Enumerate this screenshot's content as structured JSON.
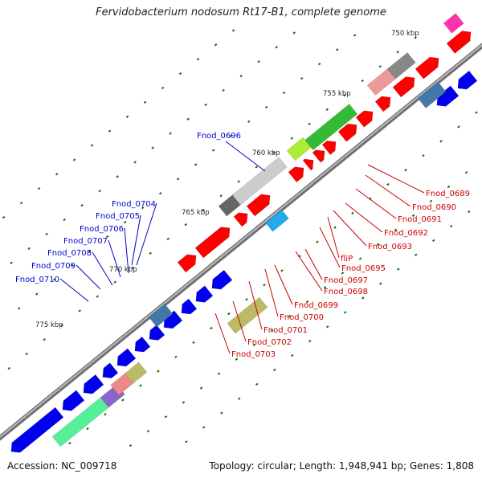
{
  "title": "Fervidobacterium nodosum Rt17-B1, complete genome",
  "footer": {
    "accession": "Accession: NC_009718",
    "summary": "Topology: circular; Length: 1,948,941 bp; Genes: 1,808"
  },
  "colors": {
    "backbone": "#8a8a8a",
    "forward_genes": "#ff0000",
    "reverse_genes": "#0000ee",
    "label_forward": "#cc0000",
    "label_reverse": "#0000cc",
    "tick": "#007700"
  },
  "kbp_ticks": [
    "750 kbp",
    "755 kbp",
    "760 kbp",
    "765 kbp",
    "770 kbp",
    "775 kbp"
  ],
  "labels_forward": [
    "Fnod_0689",
    "Fnod_0690",
    "Fnod_0691",
    "Fnod_0692",
    "Fnod_0693",
    "fliP",
    "Fnod_0695",
    "Fnod_0697",
    "Fnod_0698",
    "Fnod_0699",
    "Fnod_0700",
    "Fnod_0701",
    "Fnod_0702",
    "Fnod_0703"
  ],
  "labels_reverse": [
    "Fnod_0696",
    "Fnod_0704",
    "Fnod_0705",
    "Fnod_0706",
    "Fnod_0707",
    "Fnod_0708",
    "Fnod_0709",
    "Fnod_0710"
  ]
}
